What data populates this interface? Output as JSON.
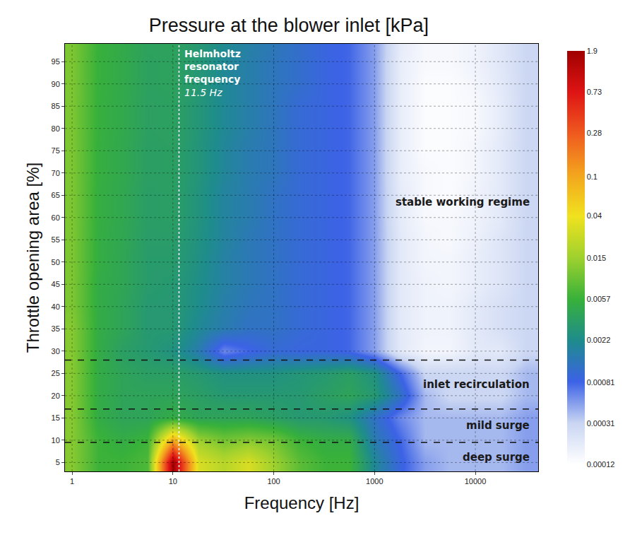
{
  "chart_data": {
    "type": "heatmap",
    "title": "Pressure at the blower inlet [kPa]",
    "x_label": "Frequency [Hz]",
    "y_label": "Throttle opening area [%]",
    "log": "x",
    "grid": true,
    "xlim": [
      0.85,
      42000
    ],
    "ylim": [
      3,
      99
    ],
    "xticks": [
      1,
      10,
      100,
      1000,
      10000
    ],
    "yticks": [
      5,
      10,
      15,
      20,
      25,
      30,
      35,
      40,
      45,
      50,
      55,
      60,
      65,
      70,
      75,
      80,
      85,
      90,
      95
    ],
    "x": [
      1,
      1.8,
      3.2,
      5.6,
      10,
      18,
      32,
      56,
      100,
      180,
      320,
      560,
      1000,
      1800,
      3200,
      5600,
      10000,
      18000,
      32000
    ],
    "y": [
      5,
      10,
      15,
      20,
      25,
      30,
      35,
      40,
      45,
      50,
      55,
      60,
      65,
      70,
      75,
      80,
      85,
      90,
      95,
      100
    ],
    "z": [
      [
        0.012,
        0.006,
        0.006,
        0.007,
        1.9,
        0.03,
        0.02,
        0.03,
        0.015,
        0.008,
        0.006,
        0.006,
        0.002,
        0.0009,
        0.0005,
        0.0004,
        0.0004,
        0.0004,
        0.0005
      ],
      [
        0.012,
        0.006,
        0.005,
        0.006,
        0.1,
        0.015,
        0.01,
        0.012,
        0.01,
        0.006,
        0.005,
        0.005,
        0.0015,
        0.0008,
        0.0004,
        0.0004,
        0.0004,
        0.0004,
        0.0005
      ],
      [
        0.012,
        0.005,
        0.004,
        0.004,
        0.005,
        0.004,
        0.004,
        0.004,
        0.0035,
        0.003,
        0.003,
        0.0025,
        0.0012,
        0.0006,
        0.0004,
        0.0004,
        0.0004,
        0.0004,
        0.0005
      ],
      [
        0.012,
        0.005,
        0.004,
        0.004,
        0.004,
        0.0035,
        0.003,
        0.003,
        0.003,
        0.003,
        0.0035,
        0.004,
        0.003,
        0.0012,
        0.0004,
        0.0003,
        0.0003,
        0.0003,
        0.0004
      ],
      [
        0.012,
        0.005,
        0.004,
        0.0035,
        0.0035,
        0.003,
        0.0025,
        0.0025,
        0.0025,
        0.0028,
        0.003,
        0.0035,
        0.0025,
        0.0008,
        0.0003,
        0.0003,
        0.0003,
        0.0003,
        0.0004
      ],
      [
        0.012,
        0.005,
        0.0035,
        0.003,
        0.0025,
        0.0015,
        0.0006,
        0.0008,
        0.001,
        0.0009,
        0.0009,
        0.0008,
        0.0005,
        0.0002,
        0.00015,
        0.00015,
        0.0002,
        0.0002,
        0.0003
      ],
      [
        0.012,
        0.005,
        0.004,
        0.003,
        0.003,
        0.002,
        0.0015,
        0.0012,
        0.0012,
        0.001,
        0.0009,
        0.0008,
        0.0005,
        0.0002,
        0.00016,
        0.00016,
        0.0002,
        0.00025,
        0.0003
      ],
      [
        0.011,
        0.005,
        0.004,
        0.003,
        0.003,
        0.0022,
        0.0016,
        0.0013,
        0.0012,
        0.001,
        0.0009,
        0.0008,
        0.0005,
        0.0002,
        0.00016,
        0.00016,
        0.0002,
        0.00025,
        0.0003
      ],
      [
        0.011,
        0.005,
        0.0042,
        0.0032,
        0.003,
        0.0023,
        0.0017,
        0.0014,
        0.0012,
        0.001,
        0.0009,
        0.0008,
        0.0005,
        0.0002,
        0.00016,
        0.00015,
        0.00018,
        0.00022,
        0.0003
      ],
      [
        0.011,
        0.0052,
        0.0042,
        0.0032,
        0.0032,
        0.0024,
        0.0017,
        0.0014,
        0.0012,
        0.001,
        0.0009,
        0.0008,
        0.0005,
        0.0002,
        0.00015,
        0.00015,
        0.00018,
        0.00022,
        0.0003
      ],
      [
        0.011,
        0.0052,
        0.0043,
        0.0033,
        0.0033,
        0.0025,
        0.0018,
        0.0014,
        0.0012,
        0.001,
        0.0009,
        0.0008,
        0.0005,
        0.0002,
        0.00015,
        0.00014,
        0.00017,
        0.00022,
        0.0003
      ],
      [
        0.011,
        0.0053,
        0.0044,
        0.0034,
        0.0035,
        0.0026,
        0.0018,
        0.0015,
        0.0012,
        0.001,
        0.0009,
        0.0008,
        0.0005,
        0.00019,
        0.00014,
        0.00014,
        0.00016,
        0.0002,
        0.0003
      ],
      [
        0.011,
        0.0053,
        0.0044,
        0.0034,
        0.0035,
        0.0026,
        0.0018,
        0.0015,
        0.0012,
        0.001,
        0.0009,
        0.0008,
        0.0005,
        0.00019,
        0.00014,
        0.00013,
        0.00016,
        0.0002,
        0.0003
      ],
      [
        0.011,
        0.0054,
        0.0045,
        0.0035,
        0.0036,
        0.0027,
        0.0019,
        0.0015,
        0.0013,
        0.001,
        0.0009,
        0.0008,
        0.0005,
        0.00018,
        0.00014,
        0.00013,
        0.00015,
        0.0002,
        0.0003
      ],
      [
        0.011,
        0.0054,
        0.0045,
        0.0035,
        0.0036,
        0.0027,
        0.0019,
        0.0015,
        0.0013,
        0.001,
        0.0009,
        0.0008,
        0.0005,
        0.00018,
        0.00013,
        0.00013,
        0.00015,
        0.0002,
        0.0003
      ],
      [
        0.011,
        0.0055,
        0.0046,
        0.0036,
        0.0037,
        0.0028,
        0.002,
        0.0016,
        0.0013,
        0.001,
        0.0009,
        0.0008,
        0.0005,
        0.00018,
        0.00013,
        0.00013,
        0.00014,
        0.00019,
        0.0003
      ],
      [
        0.011,
        0.0055,
        0.0046,
        0.0036,
        0.0037,
        0.0028,
        0.002,
        0.0016,
        0.0013,
        0.001,
        0.0009,
        0.0008,
        0.0005,
        0.00018,
        0.00013,
        0.00013,
        0.00014,
        0.00019,
        0.0003
      ],
      [
        0.011,
        0.0056,
        0.0047,
        0.0037,
        0.0038,
        0.0029,
        0.002,
        0.0016,
        0.0013,
        0.0011,
        0.0009,
        0.0008,
        0.0005,
        0.00018,
        0.00013,
        0.00013,
        0.00015,
        0.0002,
        0.0003
      ],
      [
        0.011,
        0.0056,
        0.0047,
        0.0037,
        0.0038,
        0.0029,
        0.002,
        0.0016,
        0.0013,
        0.0011,
        0.0009,
        0.0008,
        0.0005,
        0.00018,
        0.00014,
        0.00014,
        0.00016,
        0.00021,
        0.0003
      ],
      [
        0.011,
        0.0057,
        0.0048,
        0.0038,
        0.0039,
        0.003,
        0.0021,
        0.0017,
        0.0014,
        0.0011,
        0.0009,
        0.0008,
        0.0005,
        0.00019,
        0.00014,
        0.00014,
        0.00016,
        0.00021,
        0.0003
      ]
    ],
    "colorbar": {
      "log": true,
      "range": [
        0.00012,
        1.9
      ],
      "ticks": [
        0.00012,
        0.00031,
        0.00081,
        0.0022,
        0.0057,
        0.015,
        0.04,
        0.1,
        0.28,
        0.73,
        1.9
      ]
    },
    "annotations": [
      {
        "x": 11.5,
        "text": "Helmholtz resonator frequency",
        "value_label": "11.5 Hz"
      }
    ],
    "regions": {
      "boundaries": [
        9.5,
        17,
        28
      ],
      "labels": [
        "deep surge",
        "mild surge",
        "inlet recirculation",
        "stable working regime"
      ]
    }
  }
}
